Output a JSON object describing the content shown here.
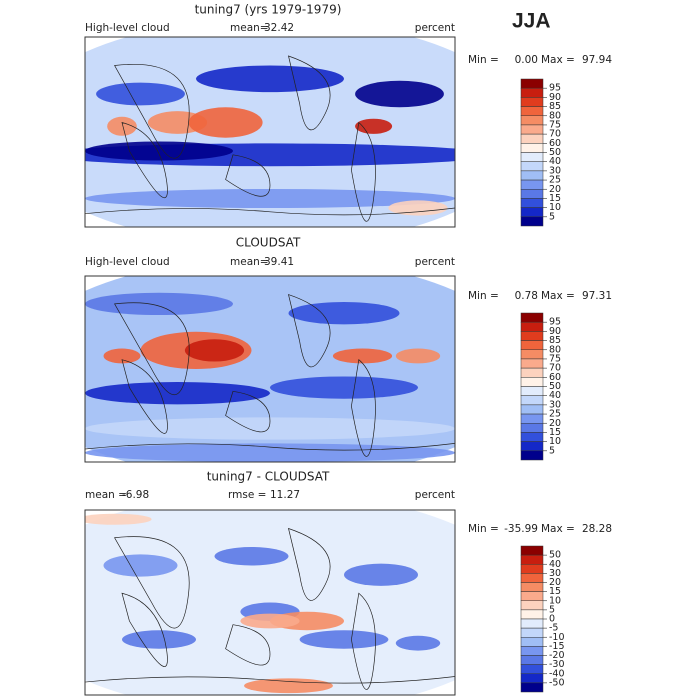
{
  "header": "JJA",
  "panels": [
    {
      "title": "tuning7 (yrs 1979-1979)",
      "left_label": "High-level cloud",
      "mean_label": "mean=",
      "mean": 32.42,
      "unit": "percent",
      "min_label": "Min =",
      "min": {
        "value": 0,
        "label": "0.00"
      },
      "max_label": "Max =",
      "max": 97.94,
      "levels": [
        95,
        90,
        85,
        80,
        75,
        70,
        60,
        50,
        40,
        30,
        25,
        20,
        15,
        10,
        5
      ],
      "colors": [
        "#8b0000",
        "#c81e0f",
        "#e03c1e",
        "#f0643c",
        "#f58c64",
        "#faaa8c",
        "#fcd2be",
        "#fff2e8",
        "#e2ecfc",
        "#c3d7fa",
        "#a0bef5",
        "#7896f0",
        "#5a78e6",
        "#3250dc",
        "#1428c8",
        "#00008c"
      ]
    },
    {
      "title": "CLOUDSAT",
      "left_label": "High-level cloud",
      "mean_label": "mean=",
      "mean": 39.41,
      "unit": "percent",
      "min_label": "Min =",
      "min": 0.78,
      "max_label": "Max =",
      "max": 97.31,
      "levels": [
        95,
        90,
        85,
        80,
        75,
        70,
        60,
        50,
        40,
        30,
        25,
        20,
        15,
        10,
        5
      ],
      "colors": [
        "#8b0000",
        "#c81e0f",
        "#e03c1e",
        "#f0643c",
        "#f58c64",
        "#faaa8c",
        "#fcd2be",
        "#fff2e8",
        "#e2ecfc",
        "#c3d7fa",
        "#a0bef5",
        "#7896f0",
        "#5a78e6",
        "#3250dc",
        "#1428c8",
        "#00008c"
      ]
    },
    {
      "title": "tuning7 - CLOUDSAT",
      "mean_label": "mean =",
      "mean": -6.98,
      "rmse_label": "rmse =",
      "rmse": 11.27,
      "unit": "percent",
      "min_label": "Min =",
      "min": -35.99,
      "max_label": "Max =",
      "max": 28.28,
      "levels": [
        50,
        40,
        30,
        20,
        15,
        10,
        5,
        0,
        -5,
        -10,
        -15,
        -20,
        -30,
        -40,
        -50
      ],
      "colors": [
        "#8b0000",
        "#c81e0f",
        "#e03c1e",
        "#f0643c",
        "#f58c64",
        "#faaa8c",
        "#fcd2be",
        "#fff2e8",
        "#e2ecfc",
        "#c3d7fa",
        "#a0bef5",
        "#7896f0",
        "#5a78e6",
        "#3250dc",
        "#1428c8",
        "#00008c"
      ]
    }
  ]
}
